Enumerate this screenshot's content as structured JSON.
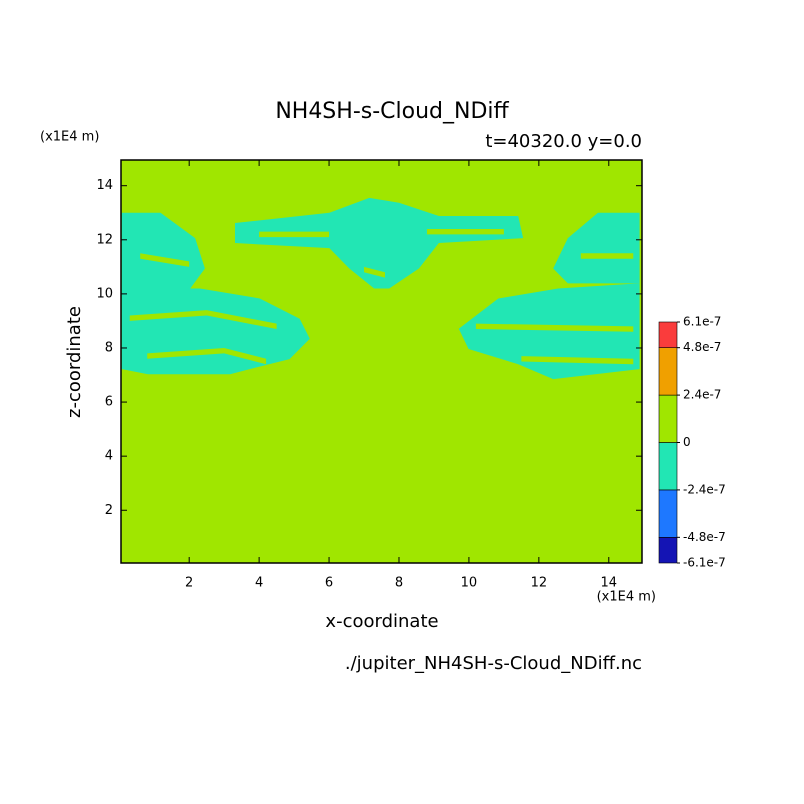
{
  "chart_data": {
    "type": "contour",
    "title": "NH4SH-s-Cloud_NDiff",
    "subtitle": "t=40320.0 y=0.0",
    "xlabel": "x-coordinate",
    "ylabel": "z-coordinate",
    "x_unit": "(x1E4 m)",
    "y_unit": "(x1E4 m)",
    "footer": "./jupiter_NH4SH-s-Cloud_NDiff.nc",
    "xlim": [
      0.05,
      14.95
    ],
    "ylim": [
      0.05,
      14.95
    ],
    "xticks": [
      2,
      4,
      6,
      8,
      10,
      12,
      14
    ],
    "yticks": [
      2,
      4,
      6,
      8,
      10,
      12,
      14
    ],
    "background_value": 0,
    "regions": [
      {
        "value": -1.2e-07,
        "points": [
          [
            0.07,
            13.0
          ],
          [
            1.18,
            13.0
          ],
          [
            2.17,
            12.06
          ],
          [
            2.45,
            10.94
          ],
          [
            2.03,
            10.2
          ],
          [
            0.07,
            10.2
          ]
        ]
      },
      {
        "value": -1.2e-07,
        "points": [
          [
            0.07,
            10.2
          ],
          [
            2.31,
            10.2
          ],
          [
            4.02,
            9.83
          ],
          [
            5.16,
            9.08
          ],
          [
            5.45,
            8.34
          ],
          [
            4.87,
            7.59
          ],
          [
            3.73,
            7.22
          ],
          [
            3.17,
            7.03
          ],
          [
            0.82,
            7.03
          ],
          [
            0.07,
            7.22
          ]
        ]
      },
      {
        "value": -1.2e-07,
        "points": [
          [
            3.31,
            12.62
          ],
          [
            6.01,
            13.0
          ],
          [
            7.15,
            13.55
          ],
          [
            8.0,
            13.37
          ],
          [
            9.14,
            12.88
          ],
          [
            11.41,
            12.88
          ],
          [
            11.55,
            12.06
          ],
          [
            9.14,
            11.88
          ],
          [
            8.57,
            10.94
          ],
          [
            7.72,
            10.2
          ],
          [
            7.29,
            10.2
          ],
          [
            6.58,
            10.94
          ],
          [
            6.01,
            11.69
          ],
          [
            3.31,
            11.88
          ]
        ]
      },
      {
        "value": -1.2e-07,
        "points": [
          [
            14.88,
            13.0
          ],
          [
            13.69,
            13.0
          ],
          [
            12.83,
            12.06
          ],
          [
            12.41,
            10.94
          ],
          [
            12.83,
            10.39
          ],
          [
            14.88,
            10.39
          ]
        ]
      },
      {
        "value": -1.2e-07,
        "points": [
          [
            14.88,
            10.39
          ],
          [
            12.55,
            10.2
          ],
          [
            10.84,
            9.83
          ],
          [
            9.71,
            8.71
          ],
          [
            9.99,
            7.96
          ],
          [
            11.41,
            7.4
          ],
          [
            12.41,
            6.85
          ],
          [
            14.88,
            7.22
          ]
        ]
      },
      {
        "value": 0,
        "points": [
          [
            0.3,
            9.2
          ],
          [
            2.5,
            9.4
          ],
          [
            4.5,
            8.9
          ],
          [
            4.5,
            8.7
          ],
          [
            2.5,
            9.2
          ],
          [
            0.3,
            9.0
          ]
        ]
      },
      {
        "value": 0,
        "points": [
          [
            0.8,
            7.8
          ],
          [
            3.0,
            8.0
          ],
          [
            4.2,
            7.6
          ],
          [
            4.2,
            7.4
          ],
          [
            3.0,
            7.8
          ],
          [
            0.8,
            7.6
          ]
        ]
      },
      {
        "value": 0,
        "points": [
          [
            0.6,
            11.5
          ],
          [
            2.0,
            11.2
          ],
          [
            2.0,
            11.0
          ],
          [
            0.6,
            11.3
          ]
        ]
      },
      {
        "value": 0,
        "points": [
          [
            4.0,
            12.3
          ],
          [
            6.0,
            12.3
          ],
          [
            6.0,
            12.1
          ],
          [
            4.0,
            12.1
          ]
        ]
      },
      {
        "value": 0,
        "points": [
          [
            8.8,
            12.4
          ],
          [
            11.0,
            12.4
          ],
          [
            11.0,
            12.2
          ],
          [
            8.8,
            12.2
          ]
        ]
      },
      {
        "value": 0,
        "points": [
          [
            7.0,
            11.0
          ],
          [
            7.6,
            10.8
          ],
          [
            7.6,
            10.6
          ],
          [
            7.0,
            10.8
          ]
        ]
      },
      {
        "value": 0,
        "points": [
          [
            10.2,
            8.9
          ],
          [
            14.7,
            8.8
          ],
          [
            14.7,
            8.6
          ],
          [
            10.2,
            8.7
          ]
        ]
      },
      {
        "value": 0,
        "points": [
          [
            11.5,
            7.7
          ],
          [
            14.7,
            7.6
          ],
          [
            14.7,
            7.4
          ],
          [
            11.5,
            7.5
          ]
        ]
      },
      {
        "value": 0,
        "points": [
          [
            13.2,
            11.5
          ],
          [
            14.7,
            11.5
          ],
          [
            14.7,
            11.3
          ],
          [
            13.2,
            11.3
          ]
        ]
      }
    ],
    "colorbar": {
      "ticks": [
        {
          "value": -6.1e-07,
          "label": "-6.1e-7"
        },
        {
          "value": -4.8e-07,
          "label": "-4.8e-7"
        },
        {
          "value": -2.4e-07,
          "label": "-2.4e-7"
        },
        0,
        {
          "value": 2.4e-07,
          "label": "2.4e-7"
        },
        {
          "value": 4.8e-07,
          "label": "4.8e-7"
        },
        {
          "value": 6.1e-07,
          "label": "6.1e-7"
        }
      ],
      "colors": [
        "#1414b4",
        "#1e78ff",
        "#22e6b4",
        "#a0e600",
        "#f0a000",
        "#fa3c3c"
      ]
    }
  }
}
